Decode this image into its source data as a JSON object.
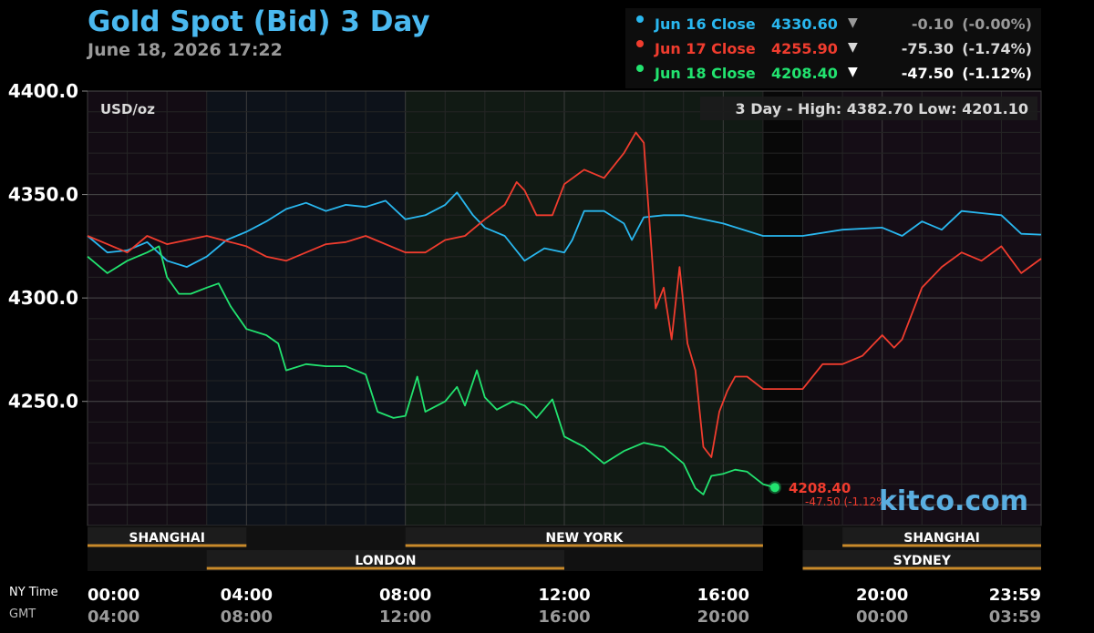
{
  "header": {
    "title": "Gold Spot (Bid) 3 Day",
    "subtitle": "June 18, 2026 17:22"
  },
  "legend": [
    {
      "label": "Jun 16 Close",
      "value": "4330.60",
      "arrow": "▼",
      "change": "-0.10",
      "pct": "(-0.00%)",
      "color": "#29b7ef",
      "text_color": "#9a9a9a"
    },
    {
      "label": "Jun 17 Close",
      "value": "4255.90",
      "arrow": "▼",
      "change": "-75.30",
      "pct": "(-1.74%)",
      "color": "#f03c2e",
      "text_color": "#d8d8d8"
    },
    {
      "label": "Jun 18 Close",
      "value": "4208.40",
      "arrow": "▼",
      "change": "-47.50",
      "pct": "(-1.12%)",
      "color": "#22e36f",
      "text_color": "#ffffff"
    }
  ],
  "chart_data": {
    "type": "line",
    "unit_label": "USD/oz",
    "stats": "3 Day - High: 4382.70  Low: 4201.10",
    "ylim": [
      4190,
      4400
    ],
    "y_ticks": [
      "4400.0",
      "4350.0",
      "4300.0",
      "4250.0"
    ],
    "x_row_labels": [
      "NY Time",
      "GMT"
    ],
    "x_ticks": [
      {
        "ny": "00:00",
        "gmt": "04:00"
      },
      {
        "ny": "04:00",
        "gmt": "08:00"
      },
      {
        "ny": "08:00",
        "gmt": "12:00"
      },
      {
        "ny": "12:00",
        "gmt": "16:00"
      },
      {
        "ny": "16:00",
        "gmt": "20:00"
      },
      {
        "ny": "20:00",
        "gmt": "00:00"
      },
      {
        "ny": "23:59",
        "gmt": "03:59"
      }
    ],
    "sessions_top": [
      {
        "name": "SHANGHAI",
        "start": 0.0,
        "end": 4.0
      },
      {
        "name": "NEW YORK",
        "start": 8.0,
        "end": 17.0
      },
      {
        "name": "SHANGHAI",
        "start": 19.0,
        "end": 24.0
      }
    ],
    "sessions_bottom": [
      {
        "name": "LONDON",
        "start": 3.0,
        "end": 12.0
      },
      {
        "name": "SYDNEY",
        "start": 18.0,
        "end": 24.0
      }
    ],
    "grid": true,
    "series": [
      {
        "name": "Jun 16 Close",
        "color": "#29b7ef",
        "points": [
          [
            0,
            4330
          ],
          [
            0.5,
            4322
          ],
          [
            1,
            4323
          ],
          [
            1.5,
            4327
          ],
          [
            2,
            4318
          ],
          [
            2.5,
            4315
          ],
          [
            3,
            4320
          ],
          [
            3.5,
            4328
          ],
          [
            4,
            4332
          ],
          [
            4.5,
            4337
          ],
          [
            5,
            4343
          ],
          [
            5.5,
            4346
          ],
          [
            6,
            4342
          ],
          [
            6.5,
            4345
          ],
          [
            7,
            4344
          ],
          [
            7.5,
            4347
          ],
          [
            8,
            4338
          ],
          [
            8.5,
            4340
          ],
          [
            9,
            4345
          ],
          [
            9.3,
            4351
          ],
          [
            9.7,
            4340
          ],
          [
            10,
            4334
          ],
          [
            10.5,
            4330
          ],
          [
            11,
            4318
          ],
          [
            11.5,
            4324
          ],
          [
            12,
            4322
          ],
          [
            12.2,
            4328
          ],
          [
            12.5,
            4342
          ],
          [
            13,
            4342
          ],
          [
            13.5,
            4336
          ],
          [
            13.7,
            4328
          ],
          [
            14,
            4339
          ],
          [
            14.5,
            4340
          ],
          [
            15,
            4340
          ],
          [
            16,
            4336
          ],
          [
            17,
            4330
          ],
          [
            18,
            4330
          ],
          [
            19,
            4333
          ],
          [
            20,
            4334
          ],
          [
            20.5,
            4330
          ],
          [
            21,
            4337
          ],
          [
            21.5,
            4333
          ],
          [
            22,
            4342
          ],
          [
            22.5,
            4341
          ],
          [
            23,
            4340
          ],
          [
            23.5,
            4331
          ],
          [
            24,
            4330.6
          ]
        ]
      },
      {
        "name": "Jun 17 Close",
        "color": "#f03c2e",
        "points": [
          [
            0,
            4330
          ],
          [
            0.5,
            4326
          ],
          [
            1,
            4322
          ],
          [
            1.5,
            4330
          ],
          [
            2,
            4326
          ],
          [
            3,
            4330
          ],
          [
            4,
            4325
          ],
          [
            4.5,
            4320
          ],
          [
            5,
            4318
          ],
          [
            5.5,
            4322
          ],
          [
            6,
            4326
          ],
          [
            6.5,
            4327
          ],
          [
            7,
            4330
          ],
          [
            8,
            4322
          ],
          [
            8.5,
            4322
          ],
          [
            9,
            4328
          ],
          [
            9.5,
            4330
          ],
          [
            10,
            4338
          ],
          [
            10.5,
            4345
          ],
          [
            10.8,
            4356
          ],
          [
            11,
            4352
          ],
          [
            11.3,
            4340
          ],
          [
            11.7,
            4340
          ],
          [
            12,
            4355
          ],
          [
            12.5,
            4362
          ],
          [
            13,
            4358
          ],
          [
            13.5,
            4370
          ],
          [
            13.8,
            4380
          ],
          [
            14,
            4375
          ],
          [
            14.3,
            4295
          ],
          [
            14.5,
            4305
          ],
          [
            14.7,
            4280
          ],
          [
            14.9,
            4315
          ],
          [
            15.1,
            4278
          ],
          [
            15.3,
            4265
          ],
          [
            15.5,
            4228
          ],
          [
            15.7,
            4223
          ],
          [
            15.9,
            4245
          ],
          [
            16.1,
            4255
          ],
          [
            16.3,
            4262
          ],
          [
            16.6,
            4262
          ],
          [
            17,
            4256
          ],
          [
            18,
            4256
          ],
          [
            18.5,
            4268
          ],
          [
            19,
            4268
          ],
          [
            19.5,
            4272
          ],
          [
            20,
            4282
          ],
          [
            20.3,
            4276
          ],
          [
            20.5,
            4280
          ],
          [
            21,
            4305
          ],
          [
            21.5,
            4315
          ],
          [
            22,
            4322
          ],
          [
            22.5,
            4318
          ],
          [
            23,
            4325
          ],
          [
            23.5,
            4312
          ],
          [
            24,
            4319
          ]
        ]
      },
      {
        "name": "Jun 18 Close",
        "color": "#22e36f",
        "points": [
          [
            0,
            4320
          ],
          [
            0.5,
            4312
          ],
          [
            1,
            4318
          ],
          [
            1.5,
            4322
          ],
          [
            1.8,
            4325
          ],
          [
            2,
            4310
          ],
          [
            2.3,
            4302
          ],
          [
            2.6,
            4302
          ],
          [
            3,
            4305
          ],
          [
            3.3,
            4307
          ],
          [
            3.6,
            4296
          ],
          [
            4,
            4285
          ],
          [
            4.5,
            4282
          ],
          [
            4.8,
            4278
          ],
          [
            5,
            4265
          ],
          [
            5.5,
            4268
          ],
          [
            6,
            4267
          ],
          [
            6.5,
            4267
          ],
          [
            7,
            4263
          ],
          [
            7.3,
            4245
          ],
          [
            7.7,
            4242
          ],
          [
            8,
            4243
          ],
          [
            8.3,
            4262
          ],
          [
            8.5,
            4245
          ],
          [
            9,
            4250
          ],
          [
            9.3,
            4257
          ],
          [
            9.5,
            4248
          ],
          [
            9.8,
            4265
          ],
          [
            10,
            4252
          ],
          [
            10.3,
            4246
          ],
          [
            10.7,
            4250
          ],
          [
            11,
            4248
          ],
          [
            11.3,
            4242
          ],
          [
            11.7,
            4251
          ],
          [
            12,
            4233
          ],
          [
            12.5,
            4228
          ],
          [
            13,
            4220
          ],
          [
            13.5,
            4226
          ],
          [
            14,
            4230
          ],
          [
            14.5,
            4228
          ],
          [
            15,
            4220
          ],
          [
            15.3,
            4208
          ],
          [
            15.5,
            4205
          ],
          [
            15.7,
            4214
          ],
          [
            16,
            4215
          ],
          [
            16.3,
            4217
          ],
          [
            16.6,
            4216
          ],
          [
            17,
            4210
          ],
          [
            17.3,
            4208.4
          ]
        ]
      }
    ],
    "last_price": {
      "value": "4208.40",
      "change": "-47.50 (-1.12%)",
      "color": "#f03c2e"
    },
    "watermark": "kitco.com"
  }
}
